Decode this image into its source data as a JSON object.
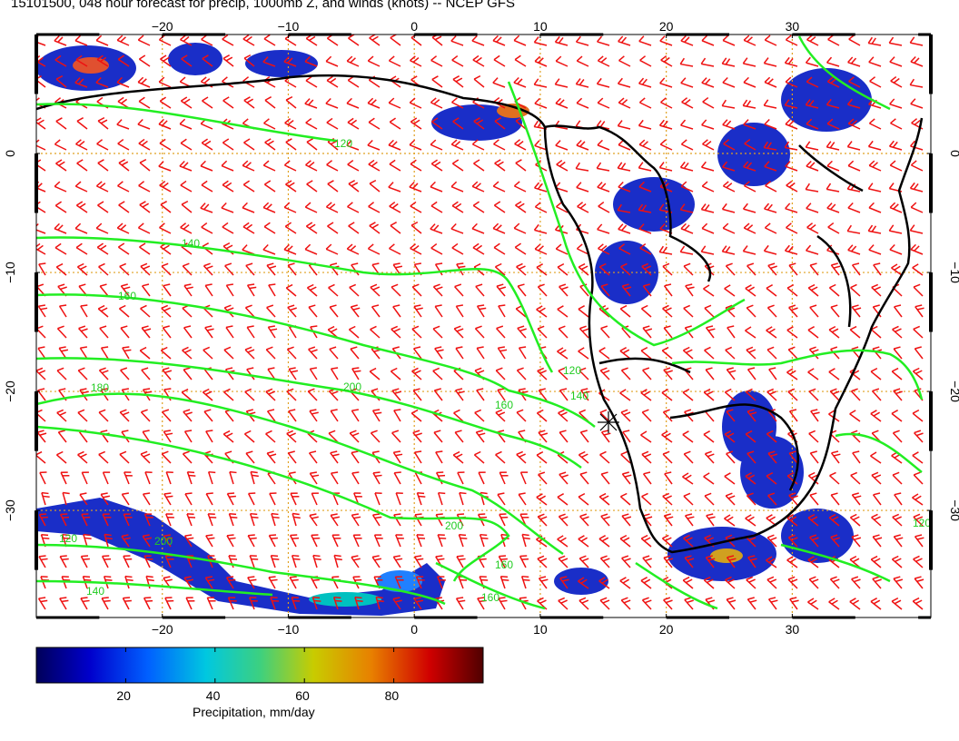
{
  "title": "15101500, 048 hour forecast for precip, 1000mb Z, and winds (knots) -- NCEP GFS",
  "map": {
    "lon_ticks": [
      "−20",
      "−10",
      "0",
      "10",
      "20",
      "30"
    ],
    "lat_ticks": [
      "0",
      "−10",
      "−20",
      "−30"
    ],
    "lon_range": [
      -30,
      41
    ],
    "lat_range": [
      -39,
      10
    ],
    "grid": true,
    "contour_labels": [
      "120",
      "140",
      "160",
      "180",
      "200",
      "200",
      "160",
      "140",
      "120",
      "160",
      "200",
      "160",
      "120",
      "140",
      "120"
    ],
    "colors": {
      "contour": "#22ee22",
      "wind_barb": "#ee1111",
      "grid": "#e0a020",
      "coast": "#000000"
    }
  },
  "colorbar": {
    "ticks": [
      "20",
      "40",
      "60",
      "80"
    ],
    "label": "Precipitation, mm/day",
    "range": [
      0,
      100
    ],
    "colors": [
      "#00005a",
      "#0000cc",
      "#0060ff",
      "#00c8e0",
      "#3cd080",
      "#c8cc00",
      "#e88000",
      "#d00000",
      "#500000"
    ]
  }
}
